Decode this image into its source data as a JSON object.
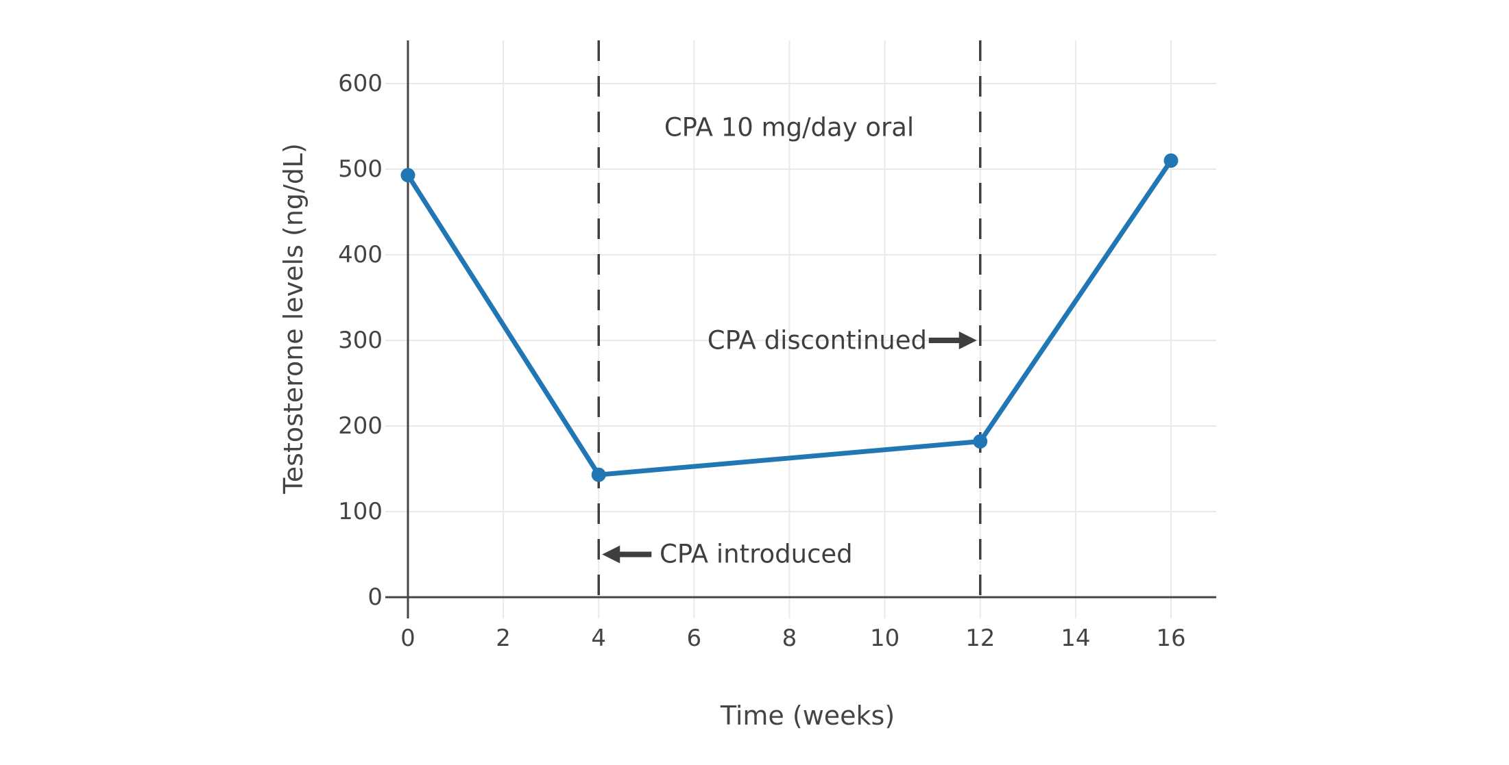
{
  "chart_data": {
    "type": "line",
    "title": "CPA 10 mg/day oral",
    "xlabel": "Time (weeks)",
    "ylabel": "Testosterone levels (ng/dL)",
    "x": [
      0,
      4,
      12,
      16
    ],
    "y": [
      493,
      143,
      182,
      510
    ],
    "xticks": [
      0,
      2,
      4,
      6,
      8,
      10,
      12,
      14,
      16
    ],
    "yticks": [
      0,
      100,
      200,
      300,
      400,
      500,
      600
    ],
    "xlim": [
      0,
      16.95
    ],
    "ylim": [
      0,
      650
    ],
    "grid": true,
    "legend": "none",
    "vlines": [
      {
        "x": 4,
        "style": "dashed"
      },
      {
        "x": 12,
        "style": "dashed"
      }
    ],
    "annotations": [
      {
        "text": "CPA 10 mg/day oral",
        "x": 8,
        "y": 550,
        "arrow": "none"
      },
      {
        "text": "CPA discontinued",
        "x": 12,
        "y": 300,
        "arrow": "right"
      },
      {
        "text": "CPA introduced",
        "x": 4,
        "y": 50,
        "arrow": "left"
      }
    ]
  },
  "colors": {
    "line": "#2177b4",
    "marker": "#2177b4",
    "axis": "#444444",
    "text": "#444444",
    "grid": "#e9e9e9",
    "dashed_line": "#3f3f3f",
    "background": "#ffffff"
  }
}
